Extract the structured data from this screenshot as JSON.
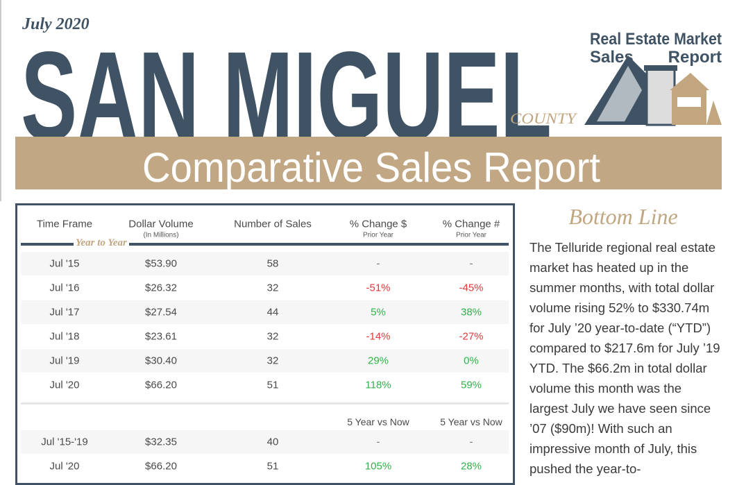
{
  "header": {
    "date": "July 2020",
    "title": "SAN MIGUEL",
    "county": "COUNTY",
    "logo": {
      "line1": "Real Estate Market",
      "left": "Sales",
      "right": "Report"
    },
    "banner": "Comparative Sales Report"
  },
  "table": {
    "columns": [
      {
        "label": "Time Frame"
      },
      {
        "label": "Dollar Volume",
        "sub": "(In Millions)"
      },
      {
        "label": "Number of Sales"
      },
      {
        "label": "% Change $",
        "sub": "Prior Year"
      },
      {
        "label": "% Change #",
        "sub": "Prior Year"
      }
    ],
    "section": "Year to Year",
    "rows": [
      [
        "Jul '15",
        "$53.90",
        "58",
        "-",
        "-"
      ],
      [
        "Jul '16",
        "$26.32",
        "32",
        "-51%",
        "-45%"
      ],
      [
        "Jul '17",
        "$27.54",
        "44",
        "5%",
        "38%"
      ],
      [
        "Jul '18",
        "$23.61",
        "32",
        "-14%",
        "-27%"
      ],
      [
        "Jul '19",
        "$30.40",
        "32",
        "29%",
        "0%"
      ],
      [
        "Jul '20",
        "$66.20",
        "51",
        "118%",
        "59%"
      ]
    ],
    "compare_headers": [
      "5 Year vs Now",
      "5 Year vs Now"
    ],
    "compare_rows": [
      [
        "Jul '15-'19",
        "$32.35",
        "40",
        "-",
        "-"
      ],
      [
        "Jul '20",
        "$66.20",
        "51",
        "105%",
        "28%"
      ]
    ]
  },
  "sidebar": {
    "title": "Bottom Line",
    "text": "The Telluride regional real estate market has heated up in the summer months, with total dollar volume rising 52% to $330.74m for July ’20 year-to-date (“YTD”) compared to $217.6m for July ’19 YTD.  The $66.2m in total dollar volume this month was the largest July we have seen since ’07 ($90m)! With such an impressive month of July, this pushed the year-to-"
  }
}
